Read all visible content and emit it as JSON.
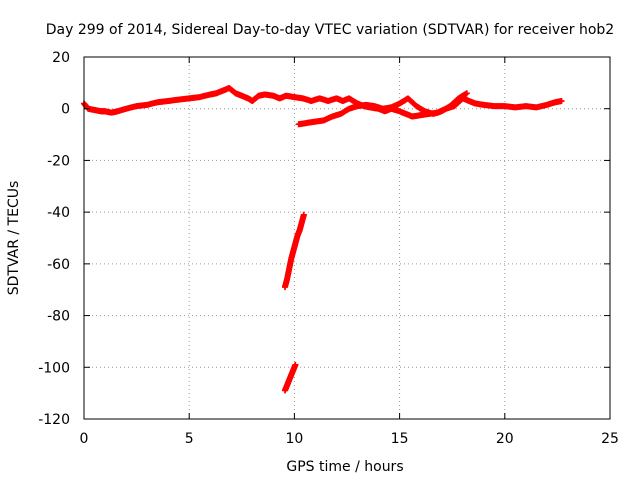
{
  "chart_data": {
    "type": "scatter",
    "title": "Day 299 of 2014, Sidereal Day-to-day VTEC variation (SDTVAR) for receiver hob2",
    "xlabel": "GPS time / hours",
    "ylabel": "SDTVAR / TECUs",
    "xlim": [
      0,
      25
    ],
    "ylim": [
      -120,
      20
    ],
    "xticks": [
      0,
      5,
      10,
      15,
      20,
      25
    ],
    "yticks": [
      20,
      0,
      -20,
      -40,
      -60,
      -80,
      -100,
      -120
    ],
    "grid": true,
    "marker": "+",
    "color": "#ff0000",
    "series": [
      {
        "name": "main-band",
        "x": [
          0.0,
          0.2,
          0.5,
          0.8,
          1.0,
          1.3,
          1.6,
          2.0,
          2.5,
          3.0,
          3.5,
          4.0,
          4.5,
          5.0,
          5.5,
          6.0,
          6.3,
          6.6,
          6.9,
          7.2,
          7.5,
          7.8,
          8.0,
          8.3,
          8.6,
          9.0,
          9.3,
          9.6,
          10.0,
          10.4,
          10.8,
          11.2,
          11.6,
          12.0,
          12.3,
          12.6,
          13.0,
          13.3,
          13.6,
          14.0,
          14.3,
          14.6,
          15.0,
          15.3,
          15.6,
          16.0,
          16.4,
          16.8,
          17.2,
          17.6,
          18.0,
          18.3,
          18.6,
          19.0,
          19.5,
          20.0,
          20.5,
          21.0,
          21.5,
          22.0,
          22.4,
          22.7
        ],
        "y": [
          2,
          0,
          -0.5,
          -1,
          -1,
          -1.5,
          -1,
          0,
          1,
          1.5,
          2.5,
          3,
          3.5,
          4,
          4.5,
          5.5,
          6,
          7,
          8,
          6,
          5,
          4,
          3,
          5,
          5.5,
          5,
          4,
          5,
          4.5,
          4,
          3,
          4,
          3,
          4,
          3,
          4,
          2,
          1,
          0.5,
          0,
          -1,
          0,
          -1,
          -2,
          -3,
          -2.5,
          -2,
          -1.5,
          0,
          1,
          4,
          3,
          2,
          1.5,
          1,
          1,
          0.5,
          1,
          0.5,
          1.5,
          2.5,
          3
        ]
      },
      {
        "name": "secondary-band",
        "x": [
          10.2,
          10.6,
          11.0,
          11.4,
          11.8,
          12.2,
          12.6,
          13.0,
          13.4,
          13.8,
          14.2,
          14.6,
          15.0,
          15.4,
          15.8,
          16.2,
          16.6,
          17.0,
          17.4,
          17.8,
          18.2
        ],
        "y": [
          -6,
          -5.5,
          -5,
          -4.5,
          -3,
          -2,
          0,
          1,
          1.5,
          1,
          0,
          0.5,
          2,
          4,
          1,
          -1,
          -2,
          -1,
          1,
          4,
          6
        ]
      },
      {
        "name": "upper-streak",
        "x": [
          9.55,
          9.65,
          9.75,
          9.85,
          9.95,
          10.05,
          10.15,
          10.25,
          10.35,
          10.45
        ],
        "y": [
          -69,
          -66,
          -62,
          -58,
          -55,
          -52,
          -49,
          -47,
          -44,
          -41
        ]
      },
      {
        "name": "lower-streak",
        "x": [
          9.55,
          9.65,
          9.75,
          9.85,
          9.95,
          10.05
        ],
        "y": [
          -109,
          -107,
          -105,
          -103,
          -101,
          -99
        ]
      }
    ]
  }
}
